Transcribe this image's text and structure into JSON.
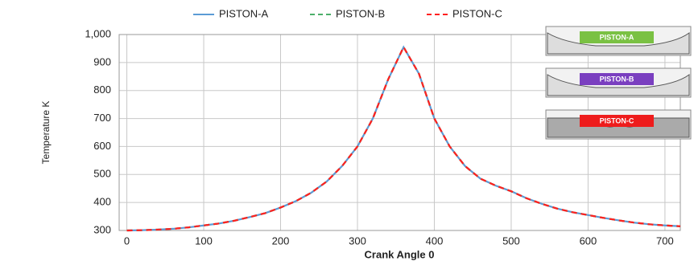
{
  "chart_data": {
    "type": "line",
    "x_label": "Crank Angle 0",
    "y_label": "Temperature K",
    "x": [
      0,
      20,
      40,
      60,
      80,
      100,
      120,
      140,
      160,
      180,
      200,
      220,
      240,
      260,
      280,
      300,
      320,
      340,
      360,
      380,
      400,
      420,
      440,
      460,
      480,
      500,
      520,
      540,
      560,
      580,
      600,
      620,
      640,
      660,
      680,
      700,
      720
    ],
    "series": [
      {
        "name": "PISTON-A",
        "color": "#5b9bd5",
        "dash": false,
        "values": [
          300,
          301,
          303,
          306,
          311,
          318,
          325,
          335,
          348,
          362,
          382,
          405,
          435,
          475,
          530,
          600,
          700,
          840,
          955,
          860,
          700,
          600,
          530,
          485,
          460,
          440,
          415,
          395,
          378,
          365,
          355,
          345,
          336,
          328,
          322,
          318,
          315
        ]
      },
      {
        "name": "PISTON-B",
        "color": "#4caf6a",
        "dash": true,
        "values": [
          300,
          301,
          303,
          306,
          311,
          318,
          325,
          335,
          348,
          362,
          382,
          405,
          435,
          475,
          530,
          600,
          700,
          840,
          955,
          860,
          700,
          600,
          530,
          485,
          460,
          440,
          415,
          395,
          378,
          365,
          355,
          345,
          336,
          328,
          322,
          318,
          315
        ]
      },
      {
        "name": "PISTON-C",
        "color": "#ff2020",
        "dash": true,
        "values": [
          300,
          301,
          303,
          306,
          311,
          318,
          325,
          335,
          348,
          362,
          382,
          405,
          435,
          475,
          530,
          600,
          700,
          840,
          955,
          860,
          700,
          600,
          530,
          485,
          460,
          440,
          415,
          395,
          378,
          365,
          355,
          345,
          336,
          328,
          322,
          318,
          315
        ]
      }
    ],
    "xlim": [
      -10,
      720
    ],
    "xticks": [
      0,
      100,
      200,
      300,
      400,
      500,
      600,
      700
    ],
    "ylim": [
      300,
      1000
    ],
    "yticks": [
      300,
      400,
      500,
      600,
      700,
      800,
      900,
      {
        "value": 1000,
        "label": "1,000"
      }
    ],
    "grid": true,
    "legend": "top",
    "insets": [
      "PISTON-A",
      "PISTON-B",
      "PISTON-C"
    ]
  }
}
